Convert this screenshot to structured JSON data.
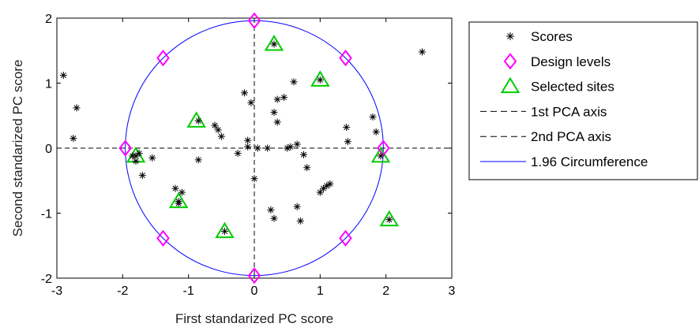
{
  "chart_data": {
    "type": "scatter",
    "xlabel": "First standarized PC score",
    "ylabel": "Second standarized PC score",
    "xlim": [
      -3,
      3
    ],
    "ylim": [
      -2,
      2
    ],
    "xticks": [
      "-3",
      "-2",
      "-1",
      "0",
      "1",
      "2",
      "3"
    ],
    "yticks": [
      "2",
      "1",
      "0",
      "-1",
      "-2"
    ],
    "legend_position": "outside-right",
    "colors": {
      "scores": "#000000",
      "design": "#ff00ff",
      "selected": "#00cc00",
      "axes_lines": "#000000",
      "circle": "#0000ff"
    },
    "circle_radius": 1.96,
    "series": [
      {
        "name": "Scores",
        "marker": "asterisk",
        "x": [
          -2.9,
          -2.7,
          -2.75,
          -1.8,
          -1.7,
          -1.55,
          -1.75,
          -1.85,
          -1.2,
          -1.1,
          -1.15,
          -0.85,
          -0.6,
          -0.55,
          -0.5,
          -0.85,
          -0.25,
          -0.1,
          0.05,
          -0.05,
          -0.15,
          -0.1,
          0,
          0.35,
          0.45,
          0.6,
          0.35,
          0.3,
          0.2,
          0.5,
          0.55,
          0.65,
          0.75,
          0.8,
          0.25,
          0.3,
          0.65,
          0.7,
          1.0,
          1.05,
          1.1,
          1.15,
          1.4,
          1.42,
          1.8,
          1.85,
          2.55,
          0.3,
          1.0,
          -1.15,
          -0.45,
          2.05,
          1.92,
          -1.8
        ],
        "y": [
          1.12,
          0.62,
          0.15,
          -0.2,
          -0.42,
          -0.15,
          -0.08,
          -0.12,
          -0.62,
          -0.68,
          -0.85,
          0.42,
          0.35,
          0.28,
          0.18,
          -0.18,
          -0.08,
          0.12,
          0.0,
          0.7,
          0.85,
          0.02,
          -0.47,
          0.75,
          0.78,
          1.02,
          0.4,
          0.55,
          0.0,
          0.0,
          0.02,
          0.06,
          -0.1,
          -0.3,
          -0.95,
          -1.08,
          -0.9,
          -1.12,
          -0.68,
          -0.62,
          -0.58,
          -0.55,
          0.32,
          0.1,
          0.48,
          0.25,
          1.48,
          1.6,
          1.05,
          -0.82,
          -1.28,
          -1.1,
          -0.12,
          -0.12
        ]
      },
      {
        "name": "Design levels",
        "marker": "diamond",
        "x": [
          0,
          0,
          -1.96,
          1.96,
          -1.386,
          1.386,
          -1.386,
          1.386
        ],
        "y": [
          1.96,
          -1.96,
          0,
          0,
          1.386,
          1.386,
          -1.386,
          -1.386
        ]
      },
      {
        "name": "Selected sites",
        "marker": "triangle",
        "x": [
          0.3,
          1.0,
          -0.88,
          -1.8,
          -1.15,
          -0.45,
          1.92,
          2.05
        ],
        "y": [
          1.6,
          1.05,
          0.42,
          -0.12,
          -0.82,
          -1.28,
          -0.12,
          -1.1
        ]
      },
      {
        "name": "1st PCA axis",
        "marker": "dashed-line"
      },
      {
        "name": "2nd PCA axis",
        "marker": "dashed-line"
      },
      {
        "name": "1.96 Circumference",
        "marker": "solid-line"
      }
    ]
  }
}
